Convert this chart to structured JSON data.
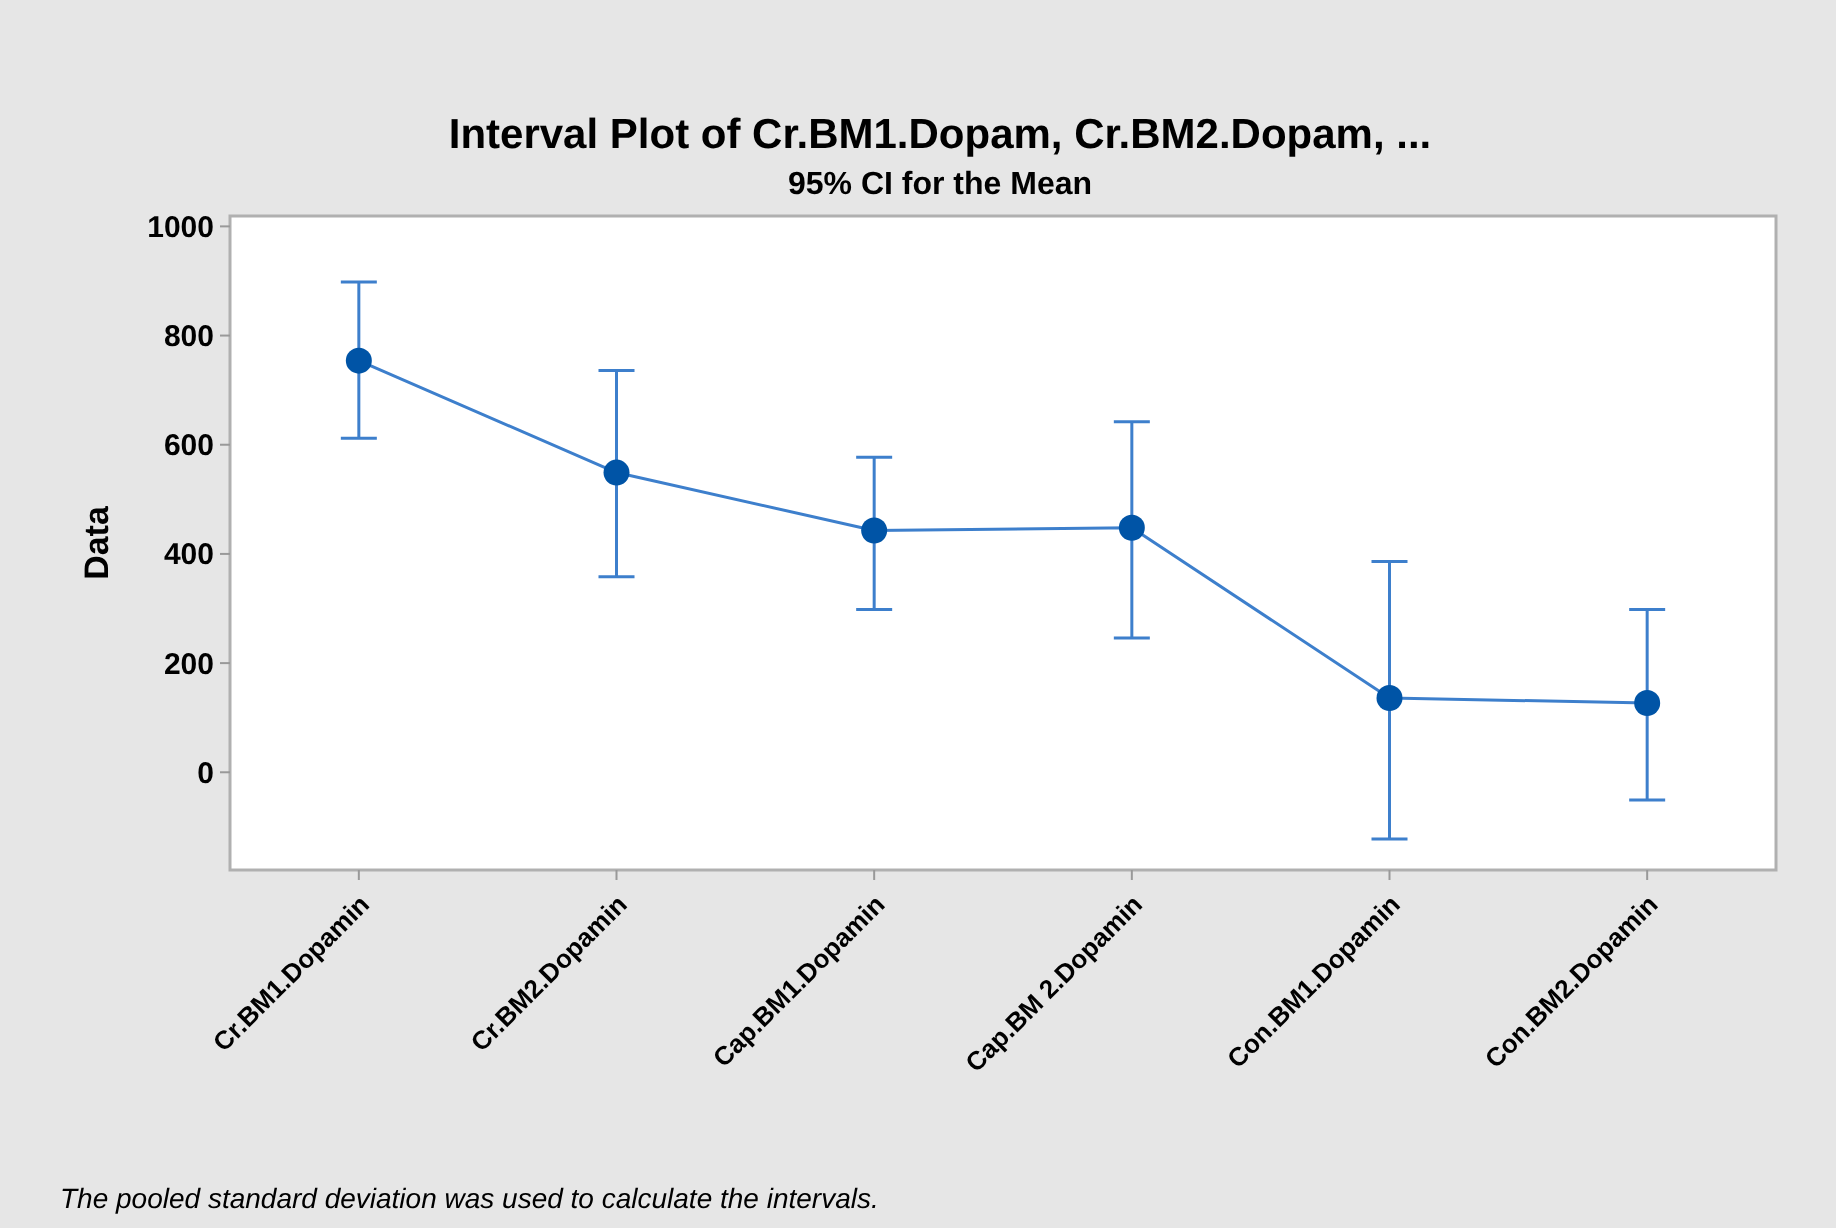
{
  "chart_data": {
    "type": "line",
    "title": "Interval Plot of Cr.BM1.Dopam, Cr.BM2.Dopam, ...",
    "subtitle": "95% CI for the Mean",
    "ylabel": "Data",
    "categories": [
      "Cr.BM1.Dopamin",
      "Cr.BM2.Dopamin",
      "Cap.BM1.Dopamin",
      "Cap.BM 2.Dopamin",
      "Con.BM1.Dopamin",
      "Con.BM2.Dopamin"
    ],
    "series": [
      {
        "color": "#0054a6",
        "values": [
          754,
          549,
          443,
          448,
          136,
          127
        ],
        "errors": [
          [
            612,
            898
          ],
          [
            358,
            736
          ],
          [
            298,
            577
          ],
          [
            246,
            642
          ],
          [
            -122,
            386
          ],
          [
            -51,
            298
          ]
        ]
      }
    ],
    "ylim": [
      -179,
      1019
    ],
    "yticks": [
      0,
      200,
      400,
      600,
      800,
      1000
    ],
    "grid": false,
    "marker": "circle",
    "line_style": "solid",
    "annotations": [
      "The pooled standard deviation was used to calculate the intervals."
    ]
  }
}
